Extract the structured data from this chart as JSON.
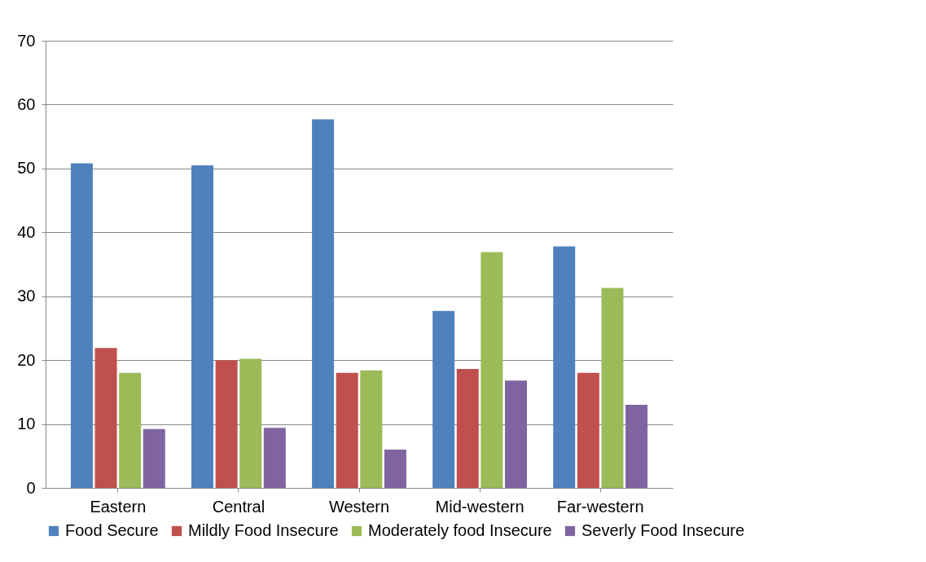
{
  "chart_data": {
    "type": "bar",
    "categories": [
      "Eastern",
      "Central",
      "Western",
      "Mid-western",
      "Far-western"
    ],
    "series": [
      {
        "name": "Food Secure",
        "color": "#4f81bd",
        "values": [
          50.8,
          50.5,
          57.7,
          27.7,
          37.8
        ]
      },
      {
        "name": "Mildly Food Insecure",
        "color": "#c0504d",
        "values": [
          21.9,
          20.0,
          18.0,
          18.6,
          18.0
        ]
      },
      {
        "name": "Moderately food Insecure",
        "color": "#9bbb59",
        "values": [
          18.0,
          20.2,
          18.4,
          36.9,
          31.3
        ]
      },
      {
        "name": "Severly Food Insecure",
        "color": "#8064a2",
        "values": [
          9.2,
          9.4,
          6.0,
          16.8,
          13.0
        ]
      }
    ],
    "ylim": [
      0,
      70
    ],
    "yticks": [
      0,
      10,
      20,
      30,
      40,
      50,
      60,
      70
    ],
    "grid": "y",
    "legend": "bottom"
  }
}
